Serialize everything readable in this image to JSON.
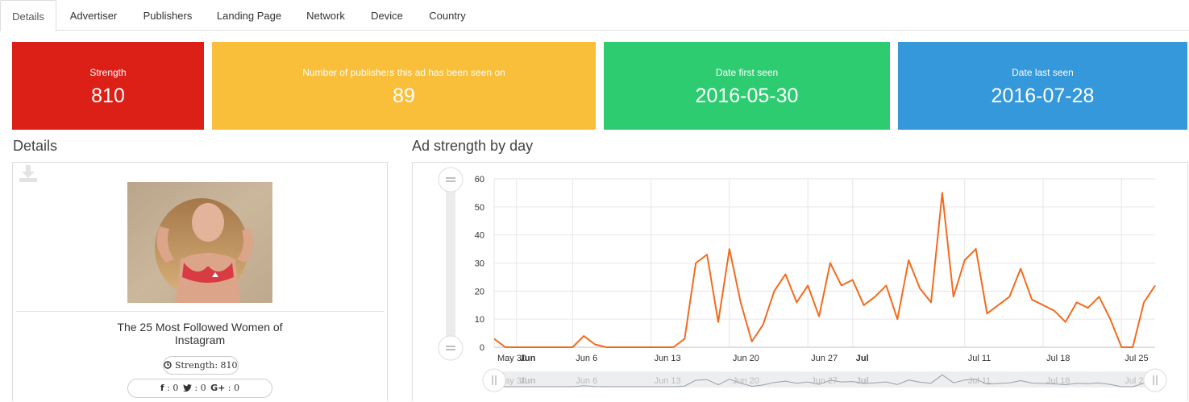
{
  "tabs": [
    {
      "label": "Details",
      "active": true
    },
    {
      "label": "Advertiser"
    },
    {
      "label": "Publishers"
    },
    {
      "label": "Landing Page"
    },
    {
      "label": "Network"
    },
    {
      "label": "Device"
    },
    {
      "label": "Country"
    }
  ],
  "stats": [
    {
      "label": "Strength",
      "value": "810",
      "color": "#dc1f17"
    },
    {
      "label": "Number of publishers this ad has been seen on",
      "value": "89",
      "color": "#f9bf3b"
    },
    {
      "label": "Date first seen",
      "value": "2016-05-30",
      "color": "#2ecc71"
    },
    {
      "label": "Date last seen",
      "value": "2016-07-28",
      "color": "#3498db"
    }
  ],
  "details": {
    "title": "Details",
    "ad_title": "The 25 Most Followed Women of Instagram",
    "strength_badge": "Strength: 810",
    "social": {
      "facebook": ": 0",
      "twitter": ": 0",
      "gplus": ": 0"
    }
  },
  "chart_section_title": "Ad strength by day",
  "chart_data": {
    "type": "line",
    "title": "",
    "xlabel": "",
    "ylabel": "",
    "ylim": [
      0,
      60
    ],
    "yticks": [
      0,
      10,
      20,
      30,
      40,
      50,
      60
    ],
    "xlim": [
      "2016-05-30",
      "2016-07-28"
    ],
    "xticks": [
      {
        "date": "2016-05-30",
        "label": "May 30",
        "bold": false
      },
      {
        "date": "2016-06-01",
        "label": "Jun",
        "bold": true
      },
      {
        "date": "2016-06-06",
        "label": "Jun 6",
        "bold": false
      },
      {
        "date": "2016-06-13",
        "label": "Jun 13",
        "bold": false
      },
      {
        "date": "2016-06-20",
        "label": "Jun 20",
        "bold": false
      },
      {
        "date": "2016-06-27",
        "label": "Jun 27",
        "bold": false
      },
      {
        "date": "2016-07-01",
        "label": "Jul",
        "bold": true
      },
      {
        "date": "2016-07-11",
        "label": "Jul 11",
        "bold": false
      },
      {
        "date": "2016-07-18",
        "label": "Jul 18",
        "bold": false
      },
      {
        "date": "2016-07-25",
        "label": "Jul 25",
        "bold": false
      }
    ],
    "grid": true,
    "series": [
      {
        "color": "#f26b1d",
        "points": [
          [
            "2016-05-30",
            3
          ],
          [
            "2016-05-31",
            0
          ],
          [
            "2016-06-01",
            0
          ],
          [
            "2016-06-02",
            0
          ],
          [
            "2016-06-03",
            0
          ],
          [
            "2016-06-04",
            0
          ],
          [
            "2016-06-05",
            0
          ],
          [
            "2016-06-06",
            0
          ],
          [
            "2016-06-07",
            4
          ],
          [
            "2016-06-08",
            1
          ],
          [
            "2016-06-09",
            0
          ],
          [
            "2016-06-10",
            0
          ],
          [
            "2016-06-11",
            0
          ],
          [
            "2016-06-12",
            0
          ],
          [
            "2016-06-13",
            0
          ],
          [
            "2016-06-14",
            0
          ],
          [
            "2016-06-15",
            0
          ],
          [
            "2016-06-16",
            3
          ],
          [
            "2016-06-17",
            30
          ],
          [
            "2016-06-18",
            33
          ],
          [
            "2016-06-19",
            9
          ],
          [
            "2016-06-20",
            35
          ],
          [
            "2016-06-21",
            16
          ],
          [
            "2016-06-22",
            2
          ],
          [
            "2016-06-23",
            8
          ],
          [
            "2016-06-24",
            20
          ],
          [
            "2016-06-25",
            26
          ],
          [
            "2016-06-26",
            16
          ],
          [
            "2016-06-27",
            22
          ],
          [
            "2016-06-28",
            11
          ],
          [
            "2016-06-29",
            30
          ],
          [
            "2016-06-30",
            22
          ],
          [
            "2016-07-01",
            24
          ],
          [
            "2016-07-02",
            15
          ],
          [
            "2016-07-03",
            18
          ],
          [
            "2016-07-04",
            22
          ],
          [
            "2016-07-05",
            10
          ],
          [
            "2016-07-06",
            31
          ],
          [
            "2016-07-07",
            21
          ],
          [
            "2016-07-08",
            16
          ],
          [
            "2016-07-09",
            55
          ],
          [
            "2016-07-10",
            18
          ],
          [
            "2016-07-11",
            31
          ],
          [
            "2016-07-12",
            35
          ],
          [
            "2016-07-13",
            12
          ],
          [
            "2016-07-15",
            18
          ],
          [
            "2016-07-16",
            28
          ],
          [
            "2016-07-17",
            17
          ],
          [
            "2016-07-19",
            13
          ],
          [
            "2016-07-20",
            9
          ],
          [
            "2016-07-21",
            16
          ],
          [
            "2016-07-22",
            14
          ],
          [
            "2016-07-23",
            18
          ],
          [
            "2016-07-24",
            10
          ],
          [
            "2016-07-25",
            0
          ],
          [
            "2016-07-26",
            0
          ],
          [
            "2016-07-27",
            16
          ],
          [
            "2016-07-28",
            22
          ]
        ]
      }
    ]
  }
}
